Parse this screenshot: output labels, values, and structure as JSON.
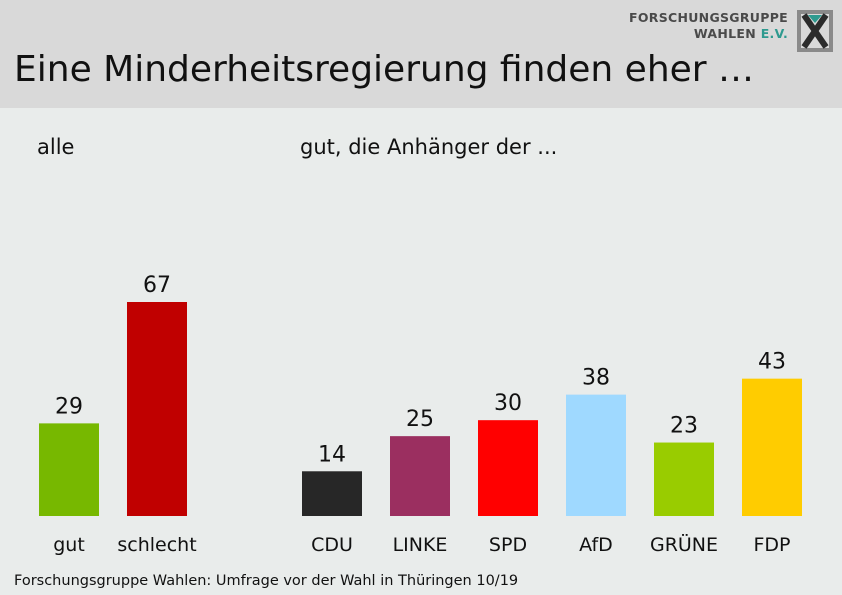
{
  "header": {
    "title": "Eine Minderheitsregierung finden eher …",
    "logo_line1": "FORSCHUNGSGRUPPE",
    "logo_line2": "WAHLEN",
    "logo_ev": "E.V."
  },
  "panels": {
    "left_label": "alle",
    "right_label": "gut, die Anhänger der ..."
  },
  "footer": {
    "source": "Forschungsgruppe Wahlen: Umfrage vor der Wahl in Thüringen 10/19"
  },
  "chart_data": [
    {
      "type": "bar",
      "title": "alle",
      "categories": [
        "gut",
        "schlecht"
      ],
      "values": [
        29,
        67
      ],
      "colors": [
        "#77b800",
        "#c00000"
      ],
      "ylim": [
        0,
        100
      ]
    },
    {
      "type": "bar",
      "title": "gut, die Anhänger der ...",
      "categories": [
        "CDU",
        "LINKE",
        "SPD",
        "AfD",
        "GRÜNE",
        "FDP"
      ],
      "values": [
        14,
        25,
        30,
        38,
        23,
        43
      ],
      "colors": [
        "#272727",
        "#9b2f60",
        "#ff0000",
        "#9fd9ff",
        "#99cc00",
        "#ffcc00"
      ],
      "ylim": [
        0,
        100
      ]
    }
  ]
}
